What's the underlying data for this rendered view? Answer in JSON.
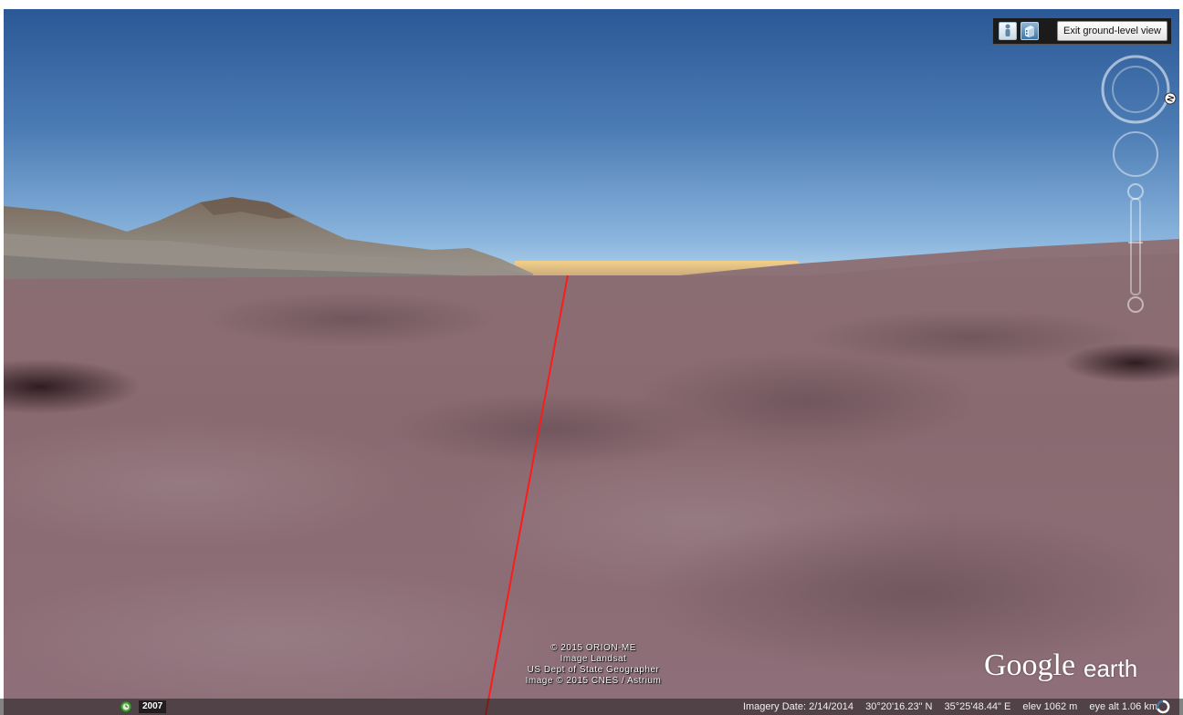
{
  "controls": {
    "person_icon": "person-icon",
    "building_icon": "building-icon",
    "exit_label": "Exit ground-level view",
    "north_label": "N",
    "look_icon": "look-joystick-icon",
    "move_icon": "move-joystick-icon",
    "zoom_icon": "zoom-slider-icon"
  },
  "attribution": [
    "© 2015 ORION-ME",
    "Image Landsat",
    "US Dept of State Geographer",
    "Image © 2015 CNES / Astrium"
  ],
  "logo": {
    "google": "Google",
    "earth": "earth"
  },
  "status": {
    "history_icon": "historical-imagery-clock-icon",
    "history_year": "2007",
    "imagery_date": "Imagery Date: 2/14/2014",
    "latitude": "30°20'16.23\" N",
    "longitude": "35°25'48.44\" E",
    "elevation": "elev  1062 m",
    "eye_altitude": "eye alt  1.06 km",
    "streaming_icon": "streaming-progress-icon"
  },
  "colors": {
    "sky_top": "#2c5a98",
    "sky_horizon": "#a9cde7",
    "ground": "#8a6a72",
    "path_line": "#ff1a1a",
    "status_bar": "#1e1e1e"
  }
}
